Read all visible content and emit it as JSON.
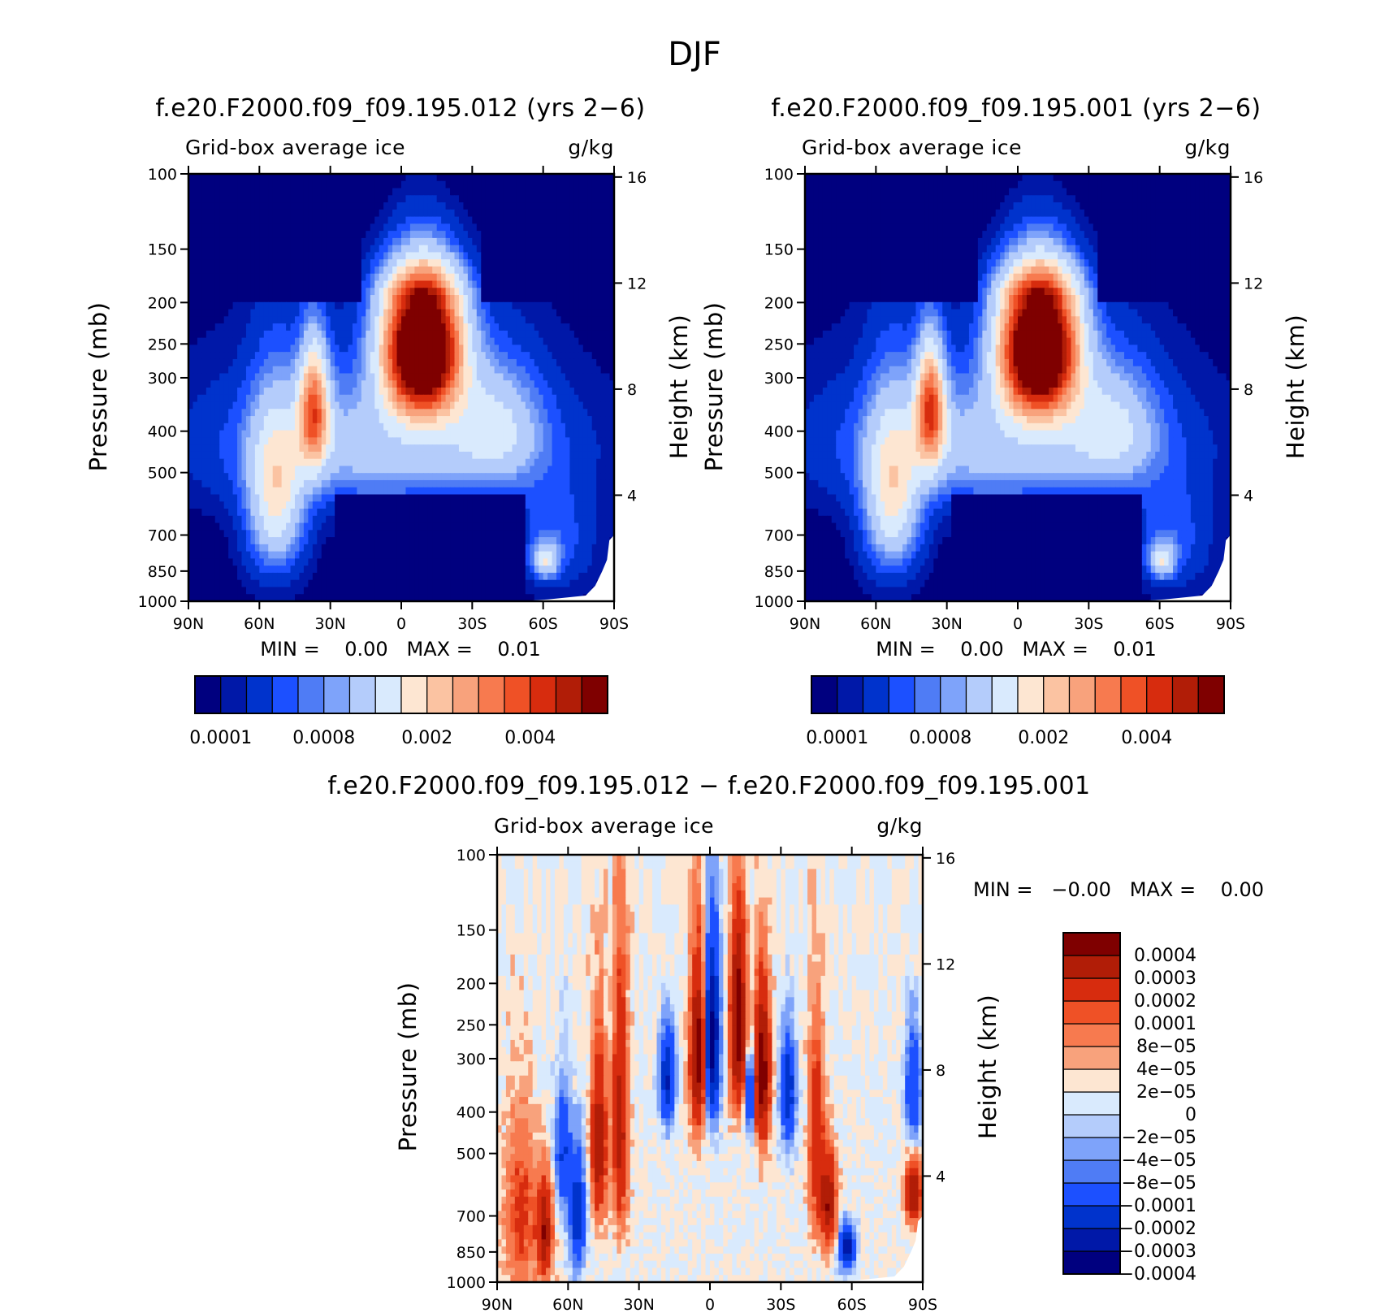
{
  "suptitle": "DJF",
  "shared_axes": {
    "lat_ticks": [
      "90N",
      "60N",
      "30N",
      "0",
      "30S",
      "60S",
      "90S"
    ],
    "pressure_ticks": [
      "100",
      "150",
      "200",
      "250",
      "300",
      "400",
      "500",
      "700",
      "850",
      "1000"
    ],
    "height_ticks": [
      "16",
      "12",
      "8",
      "4"
    ],
    "ylabel": "Pressure (mb)",
    "ylabel_right": "Height (km)",
    "subtitle_left": "Grid-box average ice",
    "subtitle_right": "g/kg"
  },
  "colors": {
    "abs_scale": [
      "#00007f",
      "#0018a8",
      "#0033cc",
      "#1c50ff",
      "#4f7cf5",
      "#7ea3fa",
      "#b4ccfb",
      "#d9eafd",
      "#fde6d2",
      "#fbc3a2",
      "#f8a27c",
      "#f77a4f",
      "#ef5126",
      "#d72c0e",
      "#b11d07",
      "#7f0000"
    ],
    "diff_scale": [
      "#00007f",
      "#0018a8",
      "#0033cc",
      "#1c50ff",
      "#4f7cf5",
      "#7ea3fa",
      "#b4ccfb",
      "#d9eafd",
      "#fde6d2",
      "#f8a27c",
      "#f77a4f",
      "#ef5126",
      "#d72c0e",
      "#b11d07",
      "#7f0000"
    ]
  },
  "chart_data": [
    {
      "type": "heatmap",
      "title": "f.e20.F2000.f09_f09.195.012 (yrs 2−6)",
      "subtitle_left": "Grid-box average ice",
      "subtitle_right": "g/kg",
      "x_labels": [
        "90N",
        "60N",
        "30N",
        "0",
        "30S",
        "60S",
        "90S"
      ],
      "y_labels": [
        "100",
        "150",
        "200",
        "250",
        "300",
        "400",
        "500",
        "700",
        "850",
        "1000"
      ],
      "min_text": "MIN =    0.00   MAX =    0.01",
      "colorbar_labels": [
        "0.0001",
        "0.0008",
        "0.002",
        "0.004"
      ],
      "levels": [
        0.0001,
        0.0002,
        0.0004,
        0.0006,
        0.0008,
        0.001,
        0.0015,
        0.002,
        0.0025,
        0.003,
        0.0035,
        0.004,
        0.0045,
        0.005,
        0.0055
      ],
      "features": [
        {
          "region": "tropical upper troposphere (0–25S, 200–350 mb)",
          "value": 0.0056
        },
        {
          "region": "NH midlatitude (30–45N, 300–450 mb)",
          "value": 0.0035
        },
        {
          "region": "NH midlatitude (40–70N, 400–850 mb)",
          "value": 0.0022
        },
        {
          "region": "SH high latitude (60S, 750–850 mb)",
          "value": 0.0018
        },
        {
          "region": "tropical lower troposphere (30N–50S, 550–1000 mb)",
          "value": 0.0001
        }
      ]
    },
    {
      "type": "heatmap",
      "title": "f.e20.F2000.f09_f09.195.001 (yrs 2−6)",
      "subtitle_left": "Grid-box average ice",
      "subtitle_right": "g/kg",
      "x_labels": [
        "90N",
        "60N",
        "30N",
        "0",
        "30S",
        "60S",
        "90S"
      ],
      "y_labels": [
        "100",
        "150",
        "200",
        "250",
        "300",
        "400",
        "500",
        "700",
        "850",
        "1000"
      ],
      "min_text": "MIN =    0.00   MAX =    0.01",
      "colorbar_labels": [
        "0.0001",
        "0.0008",
        "0.002",
        "0.004"
      ],
      "levels": [
        0.0001,
        0.0002,
        0.0004,
        0.0006,
        0.0008,
        0.001,
        0.0015,
        0.002,
        0.0025,
        0.003,
        0.0035,
        0.004,
        0.0045,
        0.005,
        0.0055
      ],
      "features": [
        {
          "region": "tropical upper troposphere (0–25S, 200–350 mb)",
          "value": 0.0056
        },
        {
          "region": "NH midlatitude (30–45N, 300–450 mb)",
          "value": 0.0035
        },
        {
          "region": "NH midlatitude (40–70N, 400–850 mb)",
          "value": 0.0022
        },
        {
          "region": "SH high latitude (60S, 750–850 mb)",
          "value": 0.0018
        },
        {
          "region": "tropical lower troposphere (30N–50S, 550–1000 mb)",
          "value": 0.0001
        }
      ]
    },
    {
      "type": "heatmap",
      "title": "f.e20.F2000.f09_f09.195.012 − f.e20.F2000.f09_f09.195.001",
      "subtitle_left": "Grid-box average ice",
      "subtitle_right": "g/kg",
      "x_labels": [
        "90N",
        "60N",
        "30N",
        "0",
        "30S",
        "60S",
        "90S"
      ],
      "y_labels": [
        "100",
        "150",
        "200",
        "250",
        "300",
        "400",
        "500",
        "700",
        "850",
        "1000"
      ],
      "min_text": "MIN =   −0.00   MAX =    0.00",
      "colorbar_labels": [
        "0.0004",
        "0.0003",
        "0.0002",
        "0.0001",
        "8e−05",
        "4e−05",
        "2e−05",
        "0",
        "−2e−05",
        "−4e−05",
        "−8e−05",
        "−0.0001",
        "−0.0002",
        "−0.0003",
        "−0.0004"
      ],
      "levels": [
        -0.0004,
        -0.0003,
        -0.0002,
        -0.0001,
        -8e-05,
        -4e-05,
        -2e-05,
        0,
        2e-05,
        4e-05,
        8e-05,
        0.0001,
        0.0002,
        0.0003,
        0.0004
      ]
    }
  ]
}
